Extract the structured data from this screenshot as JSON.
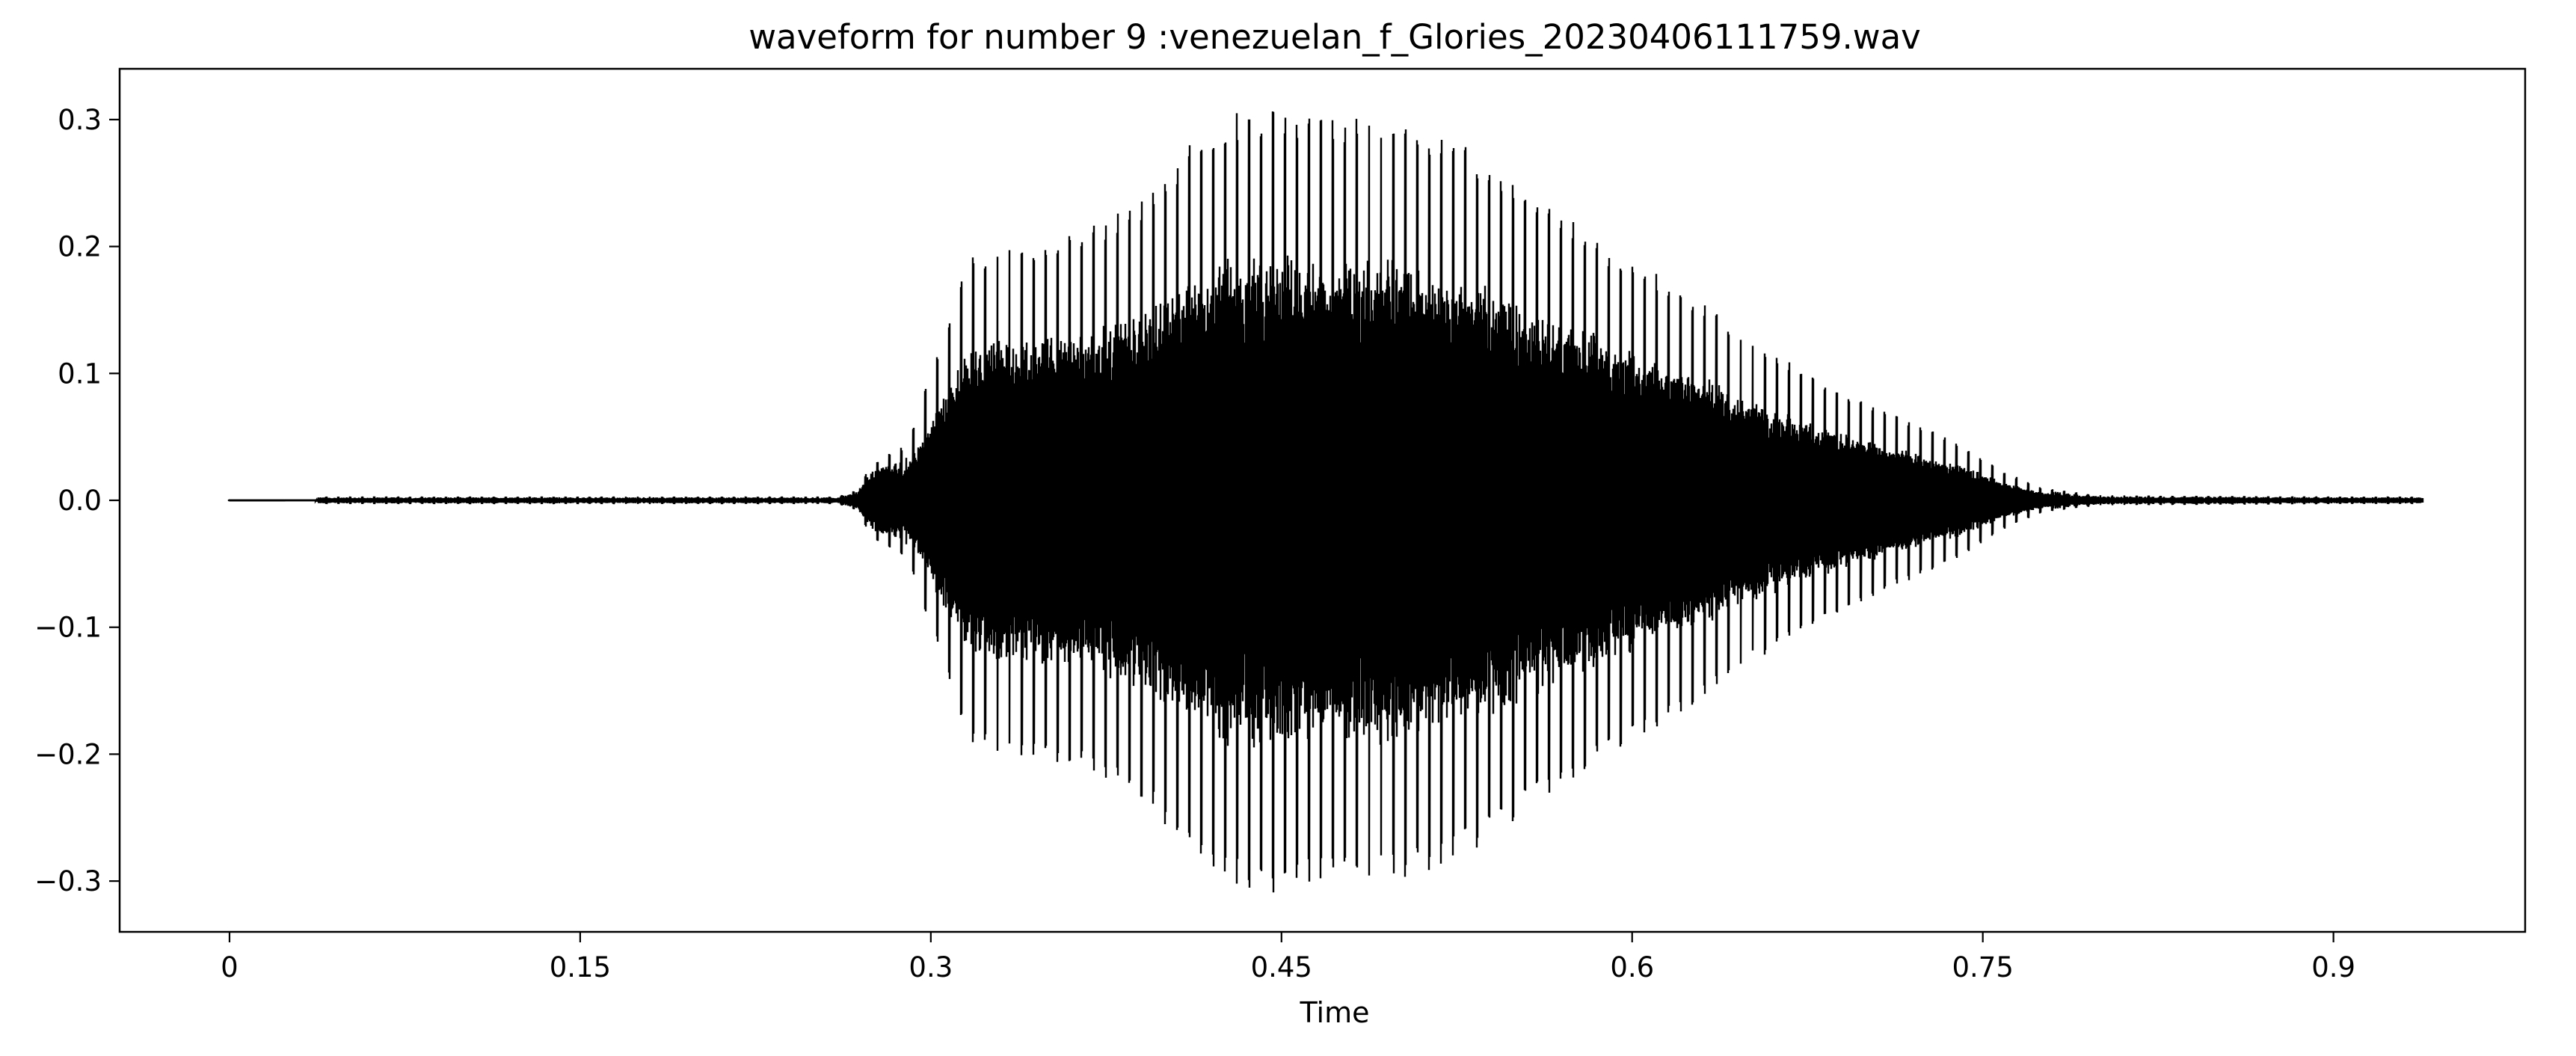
{
  "chart_data": {
    "type": "line",
    "title": "waveform for number 9 :venezuelan_f_Glories_20230406111759.wav",
    "xlabel": "Time",
    "ylabel": "",
    "xlim": [
      -0.047,
      0.982
    ],
    "ylim": [
      -0.34,
      0.34
    ],
    "x_ticks": [
      0,
      0.15,
      0.3,
      0.45,
      0.6,
      0.75,
      0.9
    ],
    "x_tick_labels": [
      "0",
      "0.15",
      "0.3",
      "0.45",
      "0.6",
      "0.75",
      "0.9"
    ],
    "y_ticks": [
      -0.3,
      -0.2,
      -0.1,
      0.0,
      0.1,
      0.2,
      0.3
    ],
    "y_tick_labels": [
      "−0.3",
      "−0.2",
      "−0.1",
      "0.0",
      "0.1",
      "0.2",
      "0.3"
    ],
    "grid": false,
    "legend": "none",
    "line_color": "#000000",
    "duration": 0.938,
    "envelope": {
      "time": [
        0,
        0.037,
        0.038,
        0.26,
        0.268,
        0.275,
        0.29,
        0.305,
        0.315,
        0.33,
        0.36,
        0.39,
        0.41,
        0.425,
        0.44,
        0.47,
        0.5,
        0.53,
        0.56,
        0.59,
        0.62,
        0.65,
        0.68,
        0.71,
        0.74,
        0.76,
        0.775,
        0.8,
        0.9,
        0.938
      ],
      "peak": [
        0.0,
        0.0,
        0.003,
        0.003,
        0.008,
        0.03,
        0.045,
        0.13,
        0.19,
        0.2,
        0.21,
        0.235,
        0.28,
        0.305,
        0.31,
        0.305,
        0.3,
        0.28,
        0.24,
        0.2,
        0.17,
        0.13,
        0.095,
        0.07,
        0.045,
        0.022,
        0.01,
        0.004,
        0.003,
        0.003
      ]
    }
  }
}
